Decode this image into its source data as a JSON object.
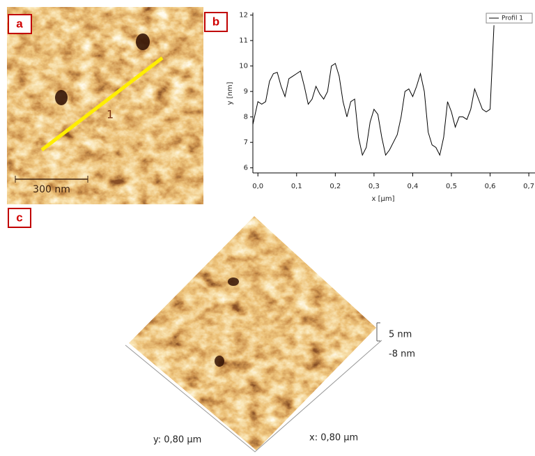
{
  "panel_labels": [
    "a",
    "b",
    "c"
  ],
  "image_a": {
    "line_label": "1",
    "scale_bar": "300 nm"
  },
  "chart_data": {
    "type": "line",
    "xlabel": "x [µm]",
    "ylabel": "y [nm]",
    "x": [
      -0.013,
      0.0,
      0.01,
      0.02,
      0.03,
      0.04,
      0.05,
      0.06,
      0.07,
      0.08,
      0.09,
      0.1,
      0.11,
      0.12,
      0.13,
      0.14,
      0.15,
      0.16,
      0.17,
      0.18,
      0.19,
      0.2,
      0.21,
      0.22,
      0.23,
      0.24,
      0.25,
      0.26,
      0.27,
      0.28,
      0.29,
      0.3,
      0.31,
      0.32,
      0.33,
      0.34,
      0.35,
      0.36,
      0.37,
      0.38,
      0.39,
      0.4,
      0.41,
      0.42,
      0.43,
      0.44,
      0.45,
      0.46,
      0.47,
      0.48,
      0.49,
      0.5,
      0.51,
      0.52,
      0.53,
      0.54,
      0.55,
      0.56,
      0.57,
      0.58,
      0.59,
      0.6,
      0.61
    ],
    "series": [
      {
        "name": "Profil 1",
        "color": "#000000",
        "values": [
          7.7,
          8.6,
          8.5,
          8.6,
          9.4,
          9.7,
          9.75,
          9.2,
          8.8,
          9.5,
          9.6,
          9.7,
          9.8,
          9.2,
          8.5,
          8.7,
          9.2,
          8.9,
          8.7,
          9.0,
          10.0,
          10.1,
          9.6,
          8.6,
          8.0,
          8.6,
          8.7,
          7.2,
          6.5,
          6.8,
          7.8,
          8.3,
          8.1,
          7.2,
          6.5,
          6.7,
          7.0,
          7.3,
          8.0,
          9.0,
          9.1,
          8.8,
          9.2,
          9.7,
          9.0,
          7.4,
          6.9,
          6.8,
          6.5,
          7.2,
          8.6,
          8.2,
          7.6,
          8.0,
          8.0,
          7.9,
          8.3,
          9.1,
          8.7,
          8.3,
          8.2,
          8.3,
          11.6
        ]
      }
    ],
    "xlim": [
      -0.013,
      0.716
    ],
    "xticks": [
      {
        "value": 0,
        "label": "0,0"
      },
      {
        "value": 0.1,
        "label": "0,1"
      },
      {
        "value": 0.2,
        "label": "0,2"
      },
      {
        "value": 0.3,
        "label": "0,3"
      },
      {
        "value": 0.4,
        "label": "0,4"
      },
      {
        "value": 0.5,
        "label": "0,5"
      },
      {
        "value": 0.6,
        "label": "0,6"
      },
      {
        "value": 0.7,
        "label": "0,7"
      }
    ],
    "ylim": [
      5.8,
      12.1
    ],
    "yticks": [
      6,
      7,
      8,
      9,
      10,
      11,
      12
    ],
    "legend": "upper right"
  },
  "image_c": {
    "z_max": "5 nm",
    "z_min": "-8 nm",
    "y_axis": "y: 0,80 µm",
    "x_axis": "x: 0,80 µm"
  }
}
